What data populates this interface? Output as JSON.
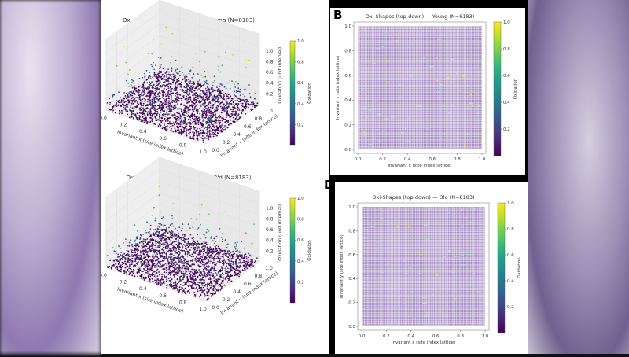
{
  "panel_letters": [
    "B",
    "D"
  ],
  "chart_data": [
    {
      "type": "scatter",
      "projection": "3d",
      "title": "Oxi-Shapes (discrete points) — Young (N=8183)",
      "xlabel": "Invariant x (site index lattice)",
      "ylabel": "Invariant y (site index lattice)",
      "zlabel": "Oxidation (unit interval)",
      "xticks": [
        "0.0",
        "0.2",
        "0.4",
        "0.6",
        "0.8",
        "1.0"
      ],
      "yticks": [
        "0.0",
        "0.2",
        "0.4",
        "0.6",
        "0.8",
        "1.0"
      ],
      "zticks": [
        "0.2",
        "0.4",
        "0.6",
        "0.8",
        "1.0"
      ],
      "xlim": [
        0,
        1
      ],
      "ylim": [
        0,
        1
      ],
      "zlim": [
        0,
        1
      ],
      "n_points": 8183,
      "colormap": "viridis",
      "colorbar": {
        "label": "Oxidation",
        "ticks": [
          "0.2",
          "0.4",
          "0.6",
          "0.8",
          "1.0"
        ],
        "range": [
          0,
          1
        ]
      }
    },
    {
      "type": "scatter",
      "projection": "3d",
      "title": "Oxi-Shapes (discrete points) — Old (N=8183)",
      "xlabel": "Invariant x (site index lattice)",
      "ylabel": "Invariant y (site index lattice)",
      "zlabel": "Oxidation (unit interval)",
      "xticks": [
        "0.0",
        "0.2",
        "0.4",
        "0.6",
        "0.8",
        "1.0"
      ],
      "yticks": [
        "0.0",
        "0.2",
        "0.4",
        "0.6",
        "0.8",
        "1.0"
      ],
      "zticks": [
        "0.2",
        "0.4",
        "0.6",
        "0.8",
        "1.0"
      ],
      "xlim": [
        0,
        1
      ],
      "ylim": [
        0,
        1
      ],
      "zlim": [
        0,
        1
      ],
      "n_points": 8183,
      "colormap": "viridis",
      "colorbar": {
        "label": "Oxidation",
        "ticks": [
          "0.2",
          "0.4",
          "0.6",
          "0.8",
          "1.0"
        ],
        "range": [
          0,
          1
        ]
      }
    },
    {
      "type": "scatter",
      "projection": "top-down",
      "title": "Oxi-Shapes (top-down) — Young (N=8183)",
      "xlabel": "Invariant x (site index lattice)",
      "ylabel": "Invariant y (site index lattice)",
      "xticks": [
        "0.0",
        "0.2",
        "0.4",
        "0.6",
        "0.8",
        "1.0"
      ],
      "yticks": [
        "0.0",
        "0.2",
        "0.4",
        "0.6",
        "0.8",
        "1.0"
      ],
      "xlim": [
        0,
        1
      ],
      "ylim": [
        0,
        1
      ],
      "n_points": 8183,
      "colormap": "viridis",
      "colorbar": {
        "label": "Oxidation",
        "ticks": [
          "0.2",
          "0.4",
          "0.6",
          "0.8",
          "1.0"
        ],
        "range": [
          0,
          1
        ]
      },
      "high_oxidation_points": [
        [
          0.31,
          0.93
        ],
        [
          0.64,
          0.74
        ],
        [
          0.73,
          0.63
        ],
        [
          0.73,
          0.58
        ],
        [
          0.85,
          0.59
        ],
        [
          0.64,
          0.56
        ],
        [
          0.25,
          0.72
        ],
        [
          0.14,
          0.7
        ],
        [
          0.25,
          0.54
        ],
        [
          0.27,
          0.33
        ],
        [
          0.92,
          0.35
        ],
        [
          0.91,
          0.44
        ],
        [
          0.05,
          0.14
        ],
        [
          0.86,
          0.04
        ],
        [
          0.99,
          0.06
        ],
        [
          0.06,
          0.97
        ],
        [
          0.65,
          0.89
        ]
      ]
    },
    {
      "type": "scatter",
      "projection": "top-down",
      "title": "Oxi-Shapes (top-down) — Old (N=8183)",
      "xlabel": "Invariant x (site index lattice)",
      "ylabel": "Invariant y (site index lattice)",
      "xticks": [
        "0.0",
        "0.2",
        "0.4",
        "0.6",
        "0.8",
        "1.0"
      ],
      "yticks": [
        "0.0",
        "0.2",
        "0.4",
        "0.6",
        "0.8",
        "1.0"
      ],
      "xlim": [
        0,
        1
      ],
      "ylim": [
        0,
        1
      ],
      "n_points": 8183,
      "colormap": "viridis",
      "colorbar": {
        "label": "Oxidation",
        "ticks": [
          "0.2",
          "0.4",
          "0.6",
          "0.8",
          "1.0"
        ],
        "range": [
          0,
          1
        ]
      },
      "high_oxidation_points": [
        [
          0.29,
          0.83
        ],
        [
          0.38,
          0.83
        ],
        [
          0.48,
          0.6
        ],
        [
          0.48,
          0.56
        ],
        [
          0.61,
          0.43
        ],
        [
          0.91,
          0.44
        ],
        [
          0.58,
          0.31
        ],
        [
          0.58,
          0.26
        ],
        [
          0.94,
          0.29
        ]
      ]
    }
  ]
}
